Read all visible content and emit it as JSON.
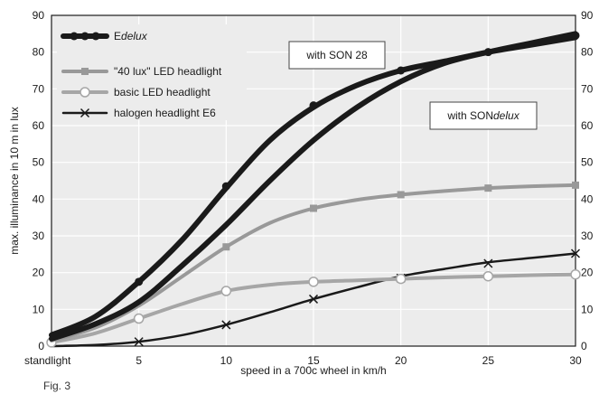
{
  "figure_label": "Fig. 3",
  "chart_data": {
    "type": "line",
    "title": "",
    "xlabel": "speed in a 700c wheel in km/h",
    "ylabel": "max. illuminance in 10 m in lux",
    "xlim": [
      0,
      30
    ],
    "ylim": [
      0,
      90
    ],
    "x_ticks": [
      {
        "value": 0,
        "label": "standlight"
      },
      {
        "value": 5,
        "label": "5"
      },
      {
        "value": 10,
        "label": "10"
      },
      {
        "value": 15,
        "label": "15"
      },
      {
        "value": 20,
        "label": "20"
      },
      {
        "value": 25,
        "label": "25"
      },
      {
        "value": 30,
        "label": "30"
      }
    ],
    "y_ticks": [
      0,
      10,
      20,
      30,
      40,
      50,
      60,
      70,
      80,
      90
    ],
    "right_axis_ticks": true,
    "grid": true,
    "legend_position": "top-left",
    "series": [
      {
        "name": "Edelux",
        "name_prefix": "E",
        "name_italic": "delux",
        "color": "#1a1a1a",
        "marker": "dot",
        "line_width": 6,
        "curves": [
          {
            "points": [
              [
                0,
                3
              ],
              [
                2.5,
                8
              ],
              [
                5,
                17.5
              ],
              [
                7.5,
                29
              ],
              [
                10,
                43
              ],
              [
                12.5,
                56
              ],
              [
                15,
                65
              ],
              [
                17.5,
                71
              ],
              [
                20,
                75
              ],
              [
                22.5,
                77.5
              ],
              [
                25,
                80
              ],
              [
                27.5,
                82
              ],
              [
                30,
                84
              ]
            ],
            "markers": [
              [
                5,
                17.5
              ],
              [
                10,
                43.5
              ],
              [
                15,
                65.5
              ],
              [
                20,
                75
              ],
              [
                25,
                80
              ],
              [
                30,
                84.5
              ]
            ]
          },
          {
            "points": [
              [
                0,
                2
              ],
              [
                2.5,
                6
              ],
              [
                5,
                12
              ],
              [
                7.5,
                22
              ],
              [
                10,
                33
              ],
              [
                12.5,
                45
              ],
              [
                15,
                56
              ],
              [
                17.5,
                65
              ],
              [
                20,
                72
              ],
              [
                22.5,
                77
              ],
              [
                25,
                80
              ],
              [
                27.5,
                82.5
              ],
              [
                30,
                85
              ]
            ],
            "markers": []
          }
        ]
      },
      {
        "name": "\"40 lux\" LED headlight",
        "color": "#999999",
        "marker": "square",
        "line_width": 4,
        "curves": [
          {
            "points": [
              [
                0,
                1.5
              ],
              [
                2.5,
                5
              ],
              [
                5,
                11
              ],
              [
                7.5,
                19
              ],
              [
                10,
                27
              ],
              [
                12.5,
                33.5
              ],
              [
                15,
                37.5
              ],
              [
                17.5,
                39.8
              ],
              [
                20,
                41.2
              ],
              [
                22.5,
                42.2
              ],
              [
                25,
                43
              ],
              [
                27.5,
                43.5
              ],
              [
                30,
                43.8
              ]
            ],
            "markers": [
              [
                10,
                27
              ],
              [
                15,
                37.5
              ],
              [
                20,
                41.2
              ],
              [
                25,
                43
              ],
              [
                30,
                43.8
              ]
            ]
          }
        ]
      },
      {
        "name": "basic LED headlight",
        "color": "#a6a6a6",
        "marker": "circle",
        "line_width": 4,
        "curves": [
          {
            "points": [
              [
                0,
                1
              ],
              [
                2.5,
                3.5
              ],
              [
                5,
                7.5
              ],
              [
                7.5,
                11.5
              ],
              [
                10,
                15
              ],
              [
                12.5,
                16.7
              ],
              [
                15,
                17.5
              ],
              [
                17.5,
                17.9
              ],
              [
                20,
                18.3
              ],
              [
                22.5,
                18.7
              ],
              [
                25,
                19
              ],
              [
                27.5,
                19.3
              ],
              [
                30,
                19.5
              ]
            ],
            "markers": [
              [
                0,
                1
              ],
              [
                5,
                7.5
              ],
              [
                10,
                15
              ],
              [
                15,
                17.5
              ],
              [
                20,
                18.3
              ],
              [
                25,
                19
              ],
              [
                30,
                19.5
              ]
            ]
          }
        ]
      },
      {
        "name": "halogen headlight E6",
        "color": "#1a1a1a",
        "marker": "x",
        "line_width": 2.5,
        "curves": [
          {
            "points": [
              [
                0,
                0
              ],
              [
                2.5,
                0.3
              ],
              [
                5,
                1.2
              ],
              [
                7.5,
                3
              ],
              [
                10,
                5.8
              ],
              [
                12.5,
                9.2
              ],
              [
                15,
                12.8
              ],
              [
                17.5,
                16
              ],
              [
                20,
                19
              ],
              [
                22.5,
                21
              ],
              [
                25,
                22.8
              ],
              [
                27.5,
                24
              ],
              [
                30,
                25.2
              ]
            ],
            "markers": [
              [
                5,
                1.2
              ],
              [
                10,
                5.8
              ],
              [
                15,
                12.8
              ],
              [
                20,
                18.5
              ],
              [
                25,
                22.5
              ],
              [
                30,
                25.2
              ]
            ]
          }
        ]
      }
    ],
    "annotations": [
      {
        "text": "with SON 28",
        "text_prefix": "with SON 28",
        "text_italic": ""
      },
      {
        "text": "with SONdelux",
        "text_prefix": "with SON",
        "text_italic": "delux"
      }
    ]
  }
}
